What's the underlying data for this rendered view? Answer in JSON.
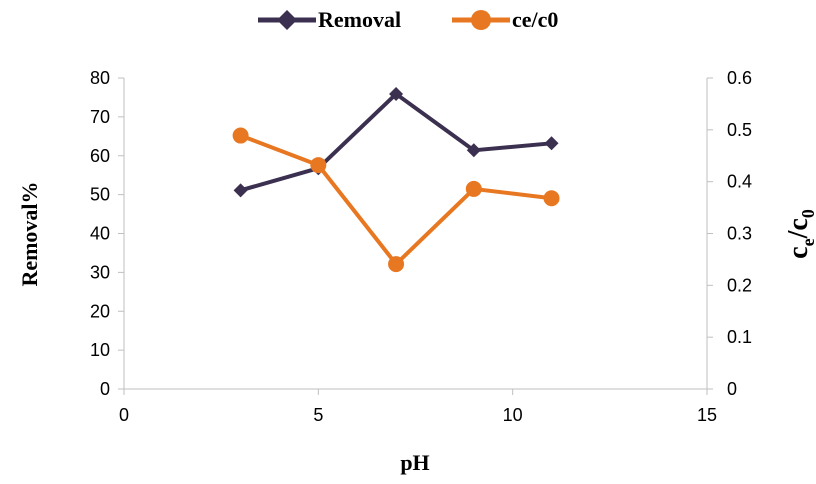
{
  "chart_data": {
    "type": "line",
    "xlabel": "pH",
    "ylabel": "Removal%",
    "y2label": {
      "main": "c",
      "sub1": "e",
      "sep": "/c",
      "sub2": "0"
    },
    "xlim": [
      0,
      15
    ],
    "ylim": [
      0,
      80
    ],
    "y2lim": [
      0,
      0.6
    ],
    "xticks": [
      0,
      5,
      10,
      15
    ],
    "yticks": [
      0,
      10,
      20,
      30,
      40,
      50,
      60,
      70,
      80
    ],
    "y2ticks": [
      "0",
      "0.1",
      "0.2",
      "0.3",
      "0.4",
      "0.5",
      "0.6"
    ],
    "grid": false,
    "legend_position": "top",
    "series": [
      {
        "name": "Removal",
        "axis": "left",
        "marker": "diamond",
        "color": "#3b3050",
        "x": [
          3,
          5,
          7,
          9,
          11
        ],
        "y": [
          51.1,
          56.8,
          75.9,
          61.4,
          63.2
        ]
      },
      {
        "name": "ce/c0",
        "axis": "right",
        "marker": "circle",
        "color": "#e87722",
        "x": [
          3,
          5,
          7,
          9,
          11
        ],
        "y": [
          0.489,
          0.432,
          0.241,
          0.386,
          0.368
        ]
      }
    ]
  }
}
